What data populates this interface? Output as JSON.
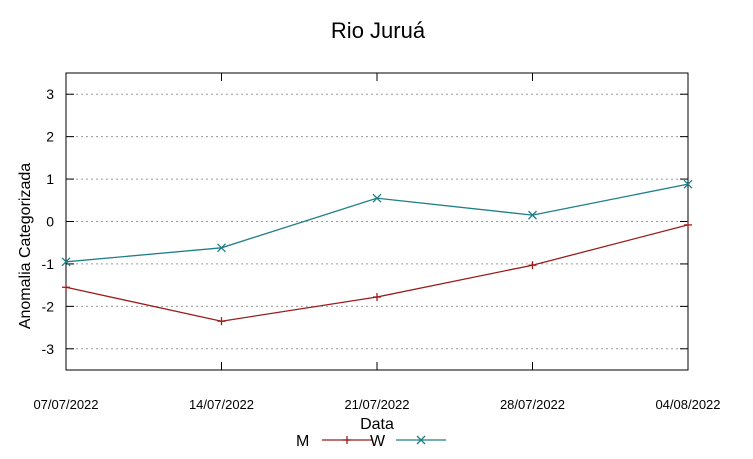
{
  "chart_data": {
    "type": "line",
    "title": "Rio Juruá",
    "xlabel": "Data",
    "ylabel": "Anomalia Categorizada",
    "categories": [
      "07/07/2022",
      "14/07/2022",
      "21/07/2022",
      "28/07/2022",
      "04/08/2022"
    ],
    "ylim": [
      -3.5,
      3.5
    ],
    "yticks": [
      3,
      2,
      1,
      0,
      -1,
      -2,
      -3
    ],
    "yticks_labels": [
      "3",
      "2",
      "1",
      "0",
      "-1",
      "-2",
      "-3"
    ],
    "grid": true,
    "legend_position": "bottom",
    "series": [
      {
        "name": "M",
        "color": "#9b1c1c",
        "marker": "plus",
        "values": [
          -1.55,
          -2.35,
          -1.78,
          -1.03,
          -0.08
        ]
      },
      {
        "name": "W",
        "color": "#1f7f86",
        "marker": "cross",
        "values": [
          -0.95,
          -0.62,
          0.55,
          0.15,
          0.88
        ]
      }
    ]
  }
}
